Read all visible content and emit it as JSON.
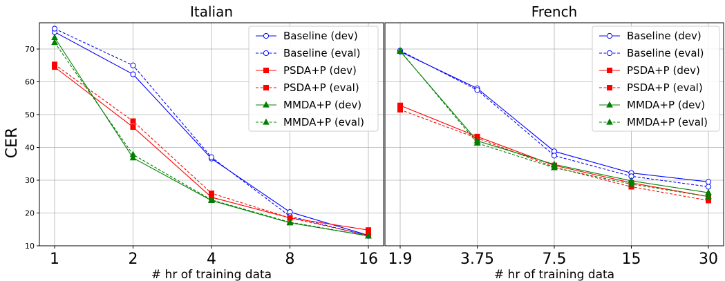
{
  "figure": {
    "ylabel": "CER"
  },
  "chart_data": [
    {
      "type": "line",
      "title": "Italian",
      "xlabel": "# hr of training data",
      "ylabel": "CER",
      "categories": [
        "1",
        "2",
        "4",
        "8",
        "16"
      ],
      "ylim": [
        10,
        78
      ],
      "yticks": [
        10,
        20,
        30,
        40,
        50,
        60,
        70
      ],
      "grid": true,
      "legend": "top-right",
      "series": [
        {
          "name": "Baseline (dev)",
          "color": "#0000ff",
          "dash": "solid",
          "marker": "circle-open",
          "values": [
            75.2,
            62.3,
            36.6,
            20.3,
            13.2
          ]
        },
        {
          "name": "Baseline (eval)",
          "color": "#0000ff",
          "dash": "dashed",
          "marker": "circle-open",
          "values": [
            76.2,
            65.0,
            37.0,
            19.0,
            13.0
          ]
        },
        {
          "name": "PSDA+P (dev)",
          "color": "#ff0000",
          "dash": "solid",
          "marker": "square",
          "values": [
            64.5,
            46.2,
            24.8,
            18.5,
            14.8
          ]
        },
        {
          "name": "PSDA+P (eval)",
          "color": "#ff0000",
          "dash": "dashed",
          "marker": "square",
          "values": [
            65.3,
            48.0,
            26.0,
            18.5,
            13.2
          ]
        },
        {
          "name": "MMDA+P (dev)",
          "color": "#008000",
          "dash": "solid",
          "marker": "triangle",
          "values": [
            73.5,
            36.8,
            23.8,
            17.0,
            13.0
          ]
        },
        {
          "name": "MMDA+P (eval)",
          "color": "#008000",
          "dash": "dashed",
          "marker": "triangle",
          "values": [
            72.0,
            37.8,
            24.0,
            17.2,
            13.0
          ]
        }
      ]
    },
    {
      "type": "line",
      "title": "French",
      "xlabel": "# hr of training data",
      "ylabel": "",
      "categories": [
        "1.9",
        "3.75",
        "7.5",
        "15",
        "30"
      ],
      "ylim": [
        10,
        78
      ],
      "grid": true,
      "legend": "top-right",
      "series": [
        {
          "name": "Baseline (dev)",
          "color": "#0000ff",
          "dash": "solid",
          "marker": "circle-open",
          "values": [
            69.2,
            58.0,
            38.8,
            32.2,
            29.5
          ]
        },
        {
          "name": "Baseline (eval)",
          "color": "#0000ff",
          "dash": "dashed",
          "marker": "circle-open",
          "values": [
            69.5,
            57.5,
            37.5,
            31.2,
            28.0
          ]
        },
        {
          "name": "PSDA+P (dev)",
          "color": "#ff0000",
          "dash": "solid",
          "marker": "square",
          "values": [
            52.8,
            43.3,
            34.5,
            29.2,
            25.0
          ]
        },
        {
          "name": "PSDA+P (eval)",
          "color": "#ff0000",
          "dash": "dashed",
          "marker": "square",
          "values": [
            51.5,
            42.8,
            34.0,
            28.0,
            23.8
          ]
        },
        {
          "name": "MMDA+P (dev)",
          "color": "#008000",
          "dash": "solid",
          "marker": "triangle",
          "values": [
            69.3,
            42.0,
            34.8,
            29.8,
            26.2
          ]
        },
        {
          "name": "MMDA+P (eval)",
          "color": "#008000",
          "dash": "dashed",
          "marker": "triangle",
          "values": [
            69.5,
            41.3,
            33.8,
            28.8,
            25.0
          ]
        }
      ]
    }
  ]
}
